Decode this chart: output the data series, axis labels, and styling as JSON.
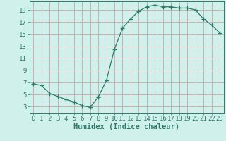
{
  "x": [
    0,
    1,
    2,
    3,
    4,
    5,
    6,
    7,
    8,
    9,
    10,
    11,
    12,
    13,
    14,
    15,
    16,
    17,
    18,
    19,
    20,
    21,
    22,
    23
  ],
  "y": [
    6.8,
    6.5,
    5.2,
    4.7,
    4.2,
    3.8,
    3.2,
    2.9,
    4.6,
    7.3,
    12.5,
    16.0,
    17.5,
    18.8,
    19.5,
    19.8,
    19.5,
    19.5,
    19.3,
    19.3,
    19.0,
    17.5,
    16.5,
    15.2
  ],
  "line_color": "#2d7a6a",
  "marker": "+",
  "marker_size": 4,
  "bg_color": "#cff0eb",
  "grid_color": "#c8a8a8",
  "xlabel": "Humidex (Indice chaleur)",
  "xlim": [
    -0.5,
    23.5
  ],
  "ylim": [
    2.0,
    20.4
  ],
  "yticks": [
    3,
    5,
    7,
    9,
    11,
    13,
    15,
    17,
    19
  ],
  "xticks": [
    0,
    1,
    2,
    3,
    4,
    5,
    6,
    7,
    8,
    9,
    10,
    11,
    12,
    13,
    14,
    15,
    16,
    17,
    18,
    19,
    20,
    21,
    22,
    23
  ],
  "xlabel_fontsize": 7.5,
  "tick_fontsize": 6.5
}
